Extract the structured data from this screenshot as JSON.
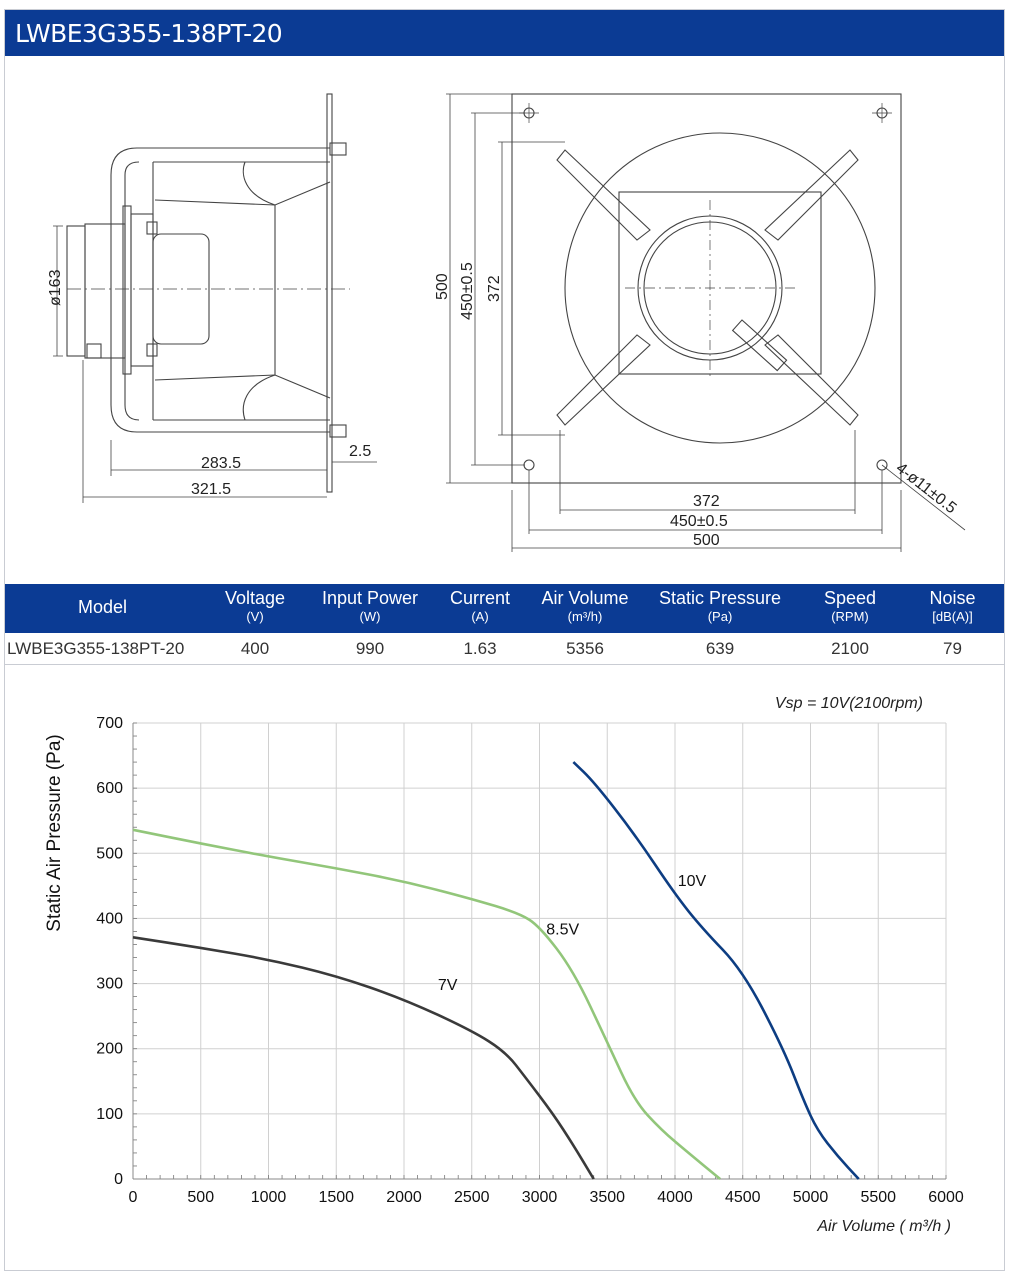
{
  "title": "LWBE3G355-138PT-20",
  "drawing": {
    "side_dims": {
      "diameter": "ø163",
      "d1": "283.5",
      "d2": "321.5",
      "d3": "2.5"
    },
    "front_dims": {
      "h1": "500",
      "h2": "450±0.5",
      "h3": "372",
      "w1": "372",
      "w2": "450±0.5",
      "w3": "500",
      "holes": "4-ø11±0.5"
    }
  },
  "table": {
    "headers": [
      {
        "label": "Model",
        "unit": ""
      },
      {
        "label": "Voltage",
        "unit": "(V)"
      },
      {
        "label": "Input Power",
        "unit": "(W)"
      },
      {
        "label": "Current",
        "unit": "(A)"
      },
      {
        "label": "Air Volume",
        "unit": "(m³/h)"
      },
      {
        "label": "Static Pressure",
        "unit": "(Pa)"
      },
      {
        "label": "Speed",
        "unit": "(RPM)"
      },
      {
        "label": "Noise",
        "unit": "[dB(A)]"
      }
    ],
    "row": [
      "LWBE3G355-138PT-20",
      "400",
      "990",
      "1.63",
      "5356",
      "639",
      "2100",
      "79"
    ]
  },
  "chart_data": {
    "type": "line",
    "annotation": "Vsp = 10V(2100rpm)",
    "xlabel": "Air Volume ( m³/h )",
    "ylabel": "Static Air Pressure  (Pa)",
    "xlim": [
      0,
      6000
    ],
    "ylim": [
      0,
      700
    ],
    "xticks": [
      "0",
      "500",
      "1000",
      "1500",
      "2000",
      "2500",
      "3000",
      "3500",
      "4000",
      "4500",
      "5000",
      "5500",
      "6000"
    ],
    "yticks": [
      "0",
      "100",
      "200",
      "300",
      "400",
      "500",
      "600",
      "700"
    ],
    "grid": true,
    "series": [
      {
        "name": "7V",
        "color": "#3a3a3a",
        "x": [
          0,
          500,
          1000,
          1500,
          2000,
          2500,
          2750,
          2900,
          3100,
          3250,
          3400
        ],
        "y": [
          371,
          355,
          337,
          312,
          276,
          228,
          195,
          155,
          100,
          52,
          0
        ]
      },
      {
        "name": "8.5V",
        "color": "#92c67a",
        "x": [
          0,
          500,
          1000,
          1500,
          2000,
          2500,
          2850,
          3000,
          3250,
          3500,
          3700,
          3900,
          4100,
          4333
        ],
        "y": [
          536,
          515,
          495,
          477,
          457,
          430,
          408,
          388,
          320,
          210,
          120,
          75,
          40,
          0
        ]
      },
      {
        "name": "10V",
        "color": "#0d3d82",
        "x": [
          3250,
          3400,
          3700,
          4000,
          4200,
          4500,
          4800,
          4950,
          5050,
          5200,
          5356
        ],
        "y": [
          640,
          610,
          530,
          437,
          385,
          320,
          200,
          120,
          75,
          35,
          0
        ]
      }
    ],
    "series_labels": [
      {
        "text": "7V",
        "x": 2250,
        "y": 290
      },
      {
        "text": "8.5V",
        "x": 3050,
        "y": 375
      },
      {
        "text": "10V",
        "x": 4020,
        "y": 450
      }
    ]
  }
}
